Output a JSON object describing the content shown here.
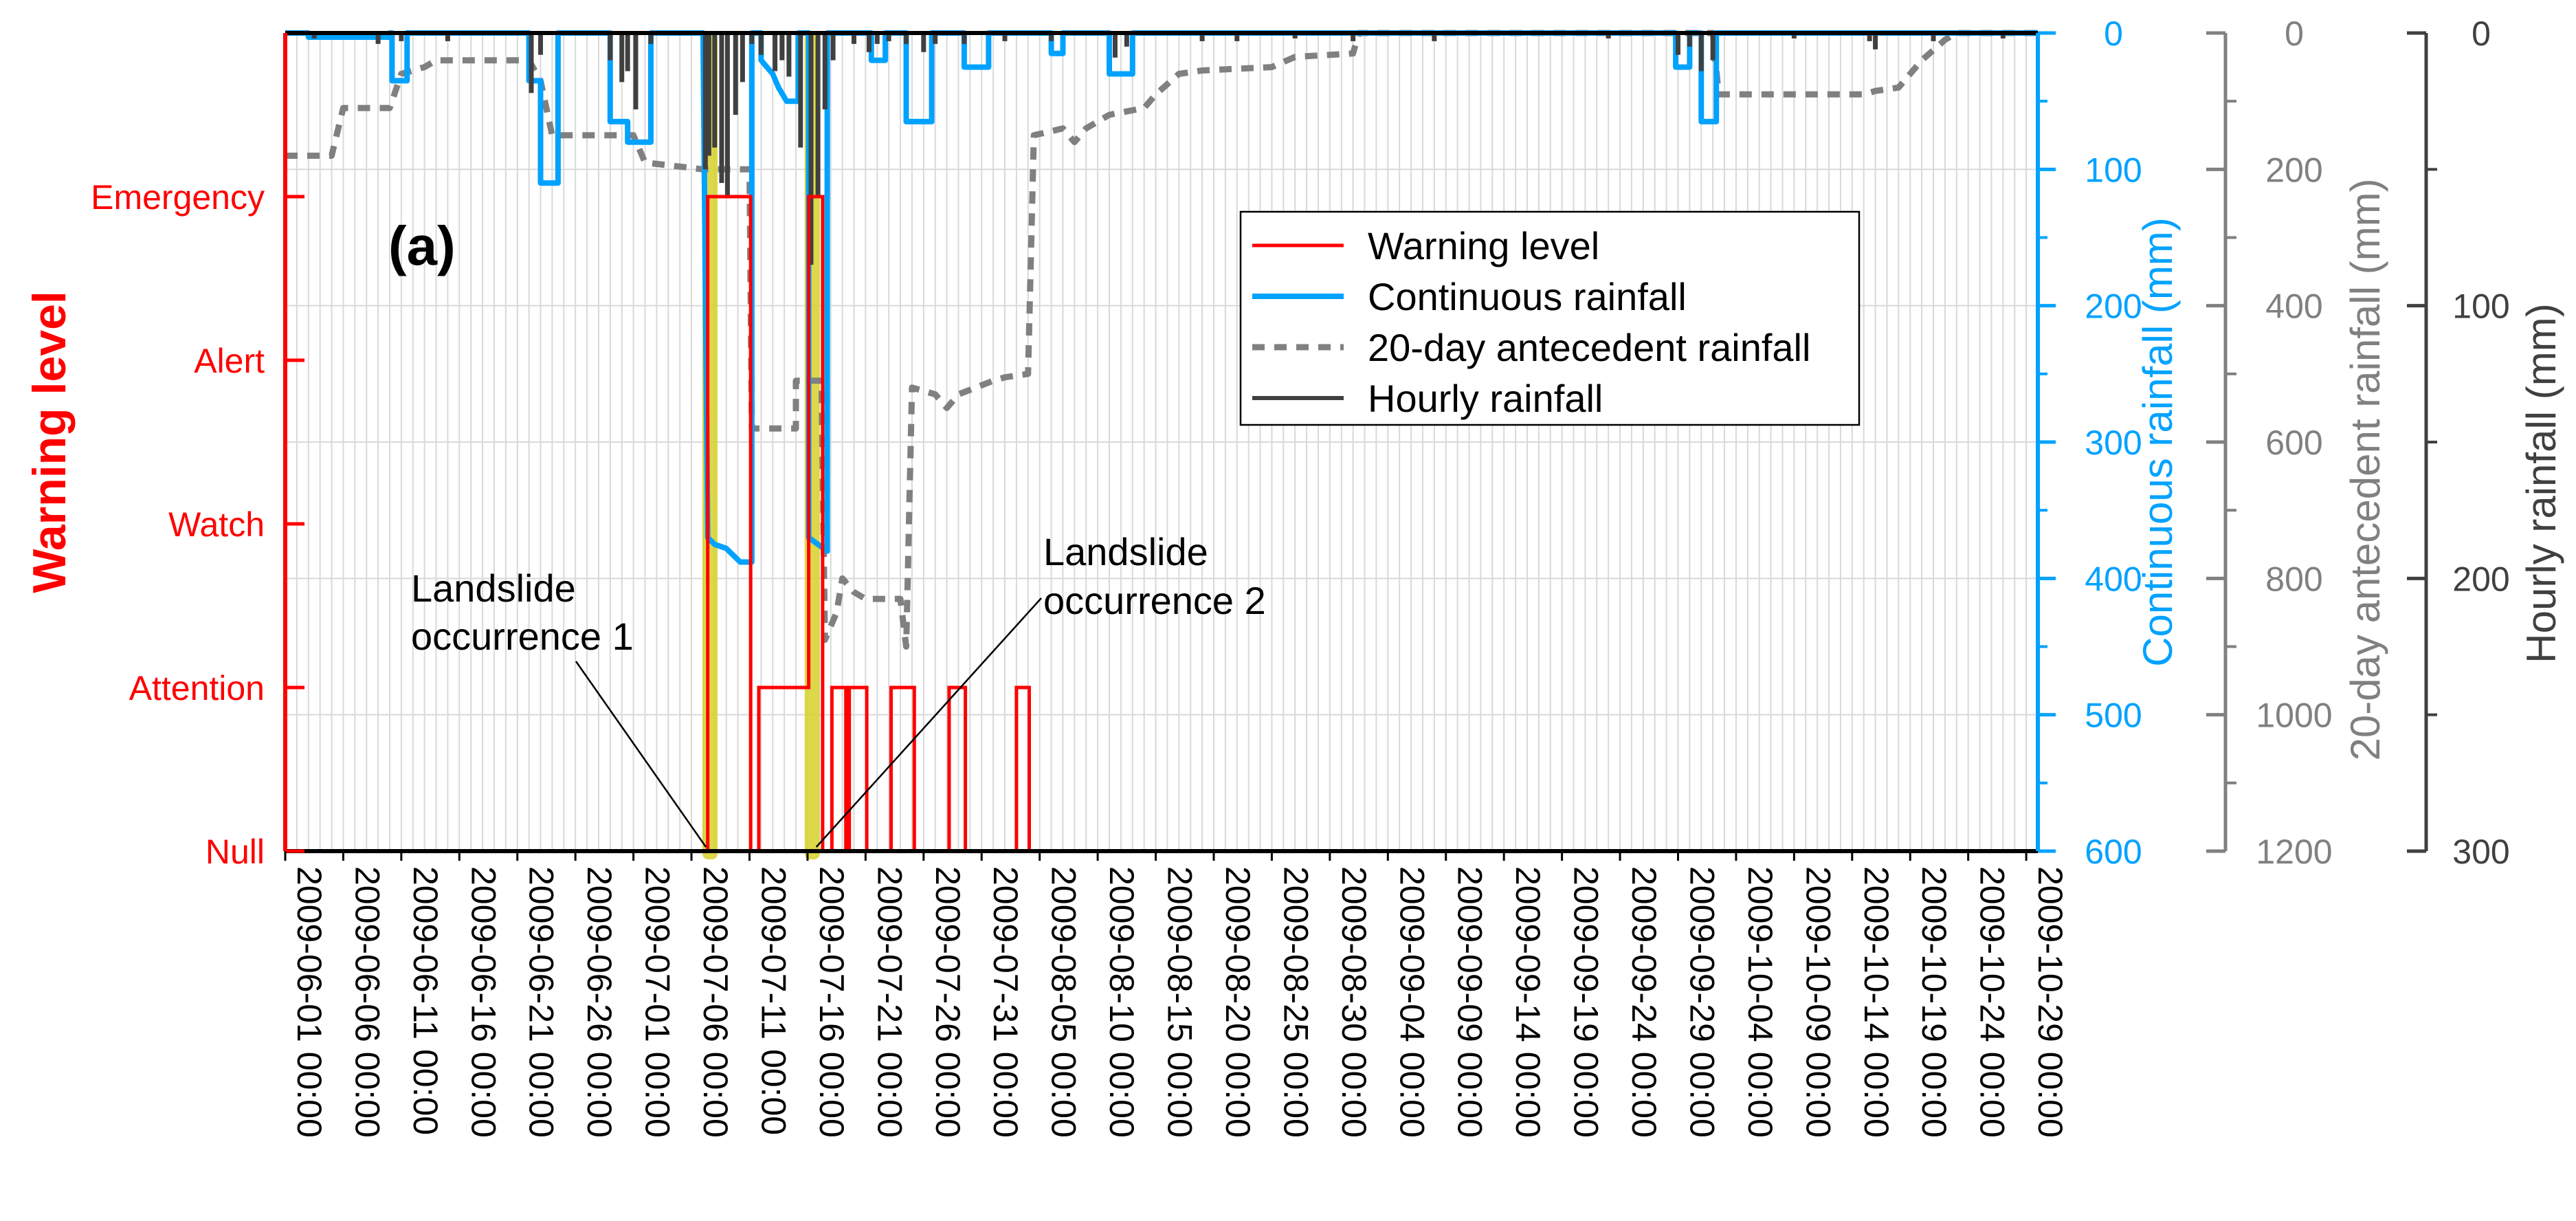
{
  "chart_data": {
    "type": "line",
    "panel_label": "(a)",
    "title": "",
    "colors": {
      "warning": "#ff0000",
      "continuous": "#00a2ff",
      "antecedent": "#808080",
      "hourly": "#404040",
      "highlight": "#d6d12a"
    },
    "x_axis": {
      "range": [
        0,
        151
      ],
      "start_date": "2009-06-01",
      "tick_labels": [
        "2009-06-01 00:00",
        "2009-06-06 00:00",
        "2009-06-11 00:00",
        "2009-06-16 00:00",
        "2009-06-21 00:00",
        "2009-06-26 00:00",
        "2009-07-01 00:00",
        "2009-07-06 00:00",
        "2009-07-11 00:00",
        "2009-07-16 00:00",
        "2009-07-21 00:00",
        "2009-07-26 00:00",
        "2009-07-31 00:00",
        "2009-08-05 00:00",
        "2009-08-10 00:00",
        "2009-08-15 00:00",
        "2009-08-20 00:00",
        "2009-08-25 00:00",
        "2009-08-30 00:00",
        "2009-09-04 00:00",
        "2009-09-09 00:00",
        "2009-09-14 00:00",
        "2009-09-19 00:00",
        "2009-09-24 00:00",
        "2009-09-29 00:00",
        "2009-10-04 00:00",
        "2009-10-09 00:00",
        "2009-10-14 00:00",
        "2009-10-19 00:00",
        "2009-10-24 00:00",
        "2009-10-29 00:00"
      ]
    },
    "y_axes": {
      "warning": {
        "title": "Warning level",
        "levels": [
          "Null",
          "Attention",
          "Watch",
          "Alert",
          "Emergency"
        ]
      },
      "continuous": {
        "title": "Continuous rainfall (mm)",
        "range": [
          0,
          600
        ],
        "ticks": [
          "0",
          "100",
          "200",
          "300",
          "400",
          "500",
          "600"
        ]
      },
      "antecedent": {
        "title": "20-day antecedent rainfall (mm)",
        "range": [
          0,
          1200
        ],
        "ticks": [
          "0",
          "200",
          "400",
          "600",
          "800",
          "1000",
          "1200"
        ]
      },
      "hourly": {
        "title": "Hourly rainfall (mm)",
        "range": [
          0,
          300
        ],
        "ticks": [
          "0",
          "100",
          "200",
          "300"
        ]
      }
    },
    "legend": {
      "position": "upper-right",
      "entries": [
        "Warning level",
        "Continuous rainfall",
        "20-day antecedent rainfall",
        "Hourly rainfall"
      ]
    },
    "landslide_days": [
      36.6,
      45.4
    ],
    "annotations": [
      {
        "lines": [
          "Landslide",
          "occurrence 1"
        ],
        "day": 36.6
      },
      {
        "lines": [
          "Landslide",
          "occurrence 2"
        ],
        "day": 45.4
      }
    ],
    "series": [
      {
        "name": "Warning level",
        "key": "warning",
        "step": true,
        "points": [
          [
            0,
            0
          ],
          [
            36.4,
            0
          ],
          [
            36.4,
            4
          ],
          [
            40.1,
            4
          ],
          [
            40.1,
            0
          ],
          [
            40.8,
            0
          ],
          [
            40.8,
            1
          ],
          [
            45.1,
            1
          ],
          [
            45.1,
            4
          ],
          [
            46.3,
            4
          ],
          [
            46.3,
            0
          ],
          [
            47.1,
            0
          ],
          [
            47.1,
            1
          ],
          [
            48.3,
            1
          ],
          [
            48.3,
            0
          ],
          [
            48.6,
            0
          ],
          [
            48.6,
            1
          ],
          [
            50.1,
            1
          ],
          [
            50.1,
            0
          ],
          [
            52.2,
            0
          ],
          [
            52.2,
            1
          ],
          [
            54.2,
            1
          ],
          [
            54.2,
            0
          ],
          [
            57.2,
            0
          ],
          [
            57.2,
            1
          ],
          [
            58.6,
            1
          ],
          [
            58.6,
            0
          ],
          [
            63.0,
            0
          ],
          [
            63.0,
            1
          ],
          [
            64.1,
            1
          ],
          [
            64.1,
            0
          ],
          [
            151,
            0
          ]
        ]
      },
      {
        "name": "Continuous rainfall",
        "key": "continuous",
        "step": true,
        "points": [
          [
            0,
            0
          ],
          [
            2,
            0
          ],
          [
            2,
            3
          ],
          [
            9,
            3
          ],
          [
            9,
            0
          ],
          [
            9.2,
            0
          ],
          [
            9.2,
            35
          ],
          [
            10.5,
            35
          ],
          [
            10.5,
            0
          ],
          [
            21,
            0
          ],
          [
            21,
            35
          ],
          [
            22,
            35
          ],
          [
            22,
            110
          ],
          [
            23.5,
            110
          ],
          [
            23.5,
            0
          ],
          [
            28,
            0
          ],
          [
            28,
            65
          ],
          [
            29.5,
            65
          ],
          [
            29.5,
            80
          ],
          [
            31.5,
            80
          ],
          [
            31.5,
            0
          ],
          [
            36,
            0
          ],
          [
            36.4,
            370
          ],
          [
            37,
            375
          ],
          [
            38,
            378
          ],
          [
            39.2,
            388
          ],
          [
            40.2,
            388
          ],
          [
            40.2,
            0
          ],
          [
            41,
            0
          ],
          [
            41,
            20
          ],
          [
            42,
            30
          ],
          [
            42.5,
            40
          ],
          [
            43.2,
            50
          ],
          [
            44.2,
            50
          ],
          [
            44.2,
            0
          ],
          [
            45.1,
            0
          ],
          [
            45.1,
            370
          ],
          [
            46.7,
            380
          ],
          [
            46.7,
            0
          ],
          [
            50.5,
            0
          ],
          [
            50.5,
            20
          ],
          [
            51.7,
            20
          ],
          [
            51.7,
            0
          ],
          [
            53.5,
            0
          ],
          [
            53.5,
            65
          ],
          [
            55.7,
            65
          ],
          [
            55.7,
            0
          ],
          [
            58.5,
            0
          ],
          [
            58.5,
            25
          ],
          [
            60.6,
            25
          ],
          [
            60.6,
            0
          ],
          [
            66,
            0
          ],
          [
            66,
            15
          ],
          [
            67,
            15
          ],
          [
            67,
            0
          ],
          [
            71,
            0
          ],
          [
            71,
            30
          ],
          [
            73,
            30
          ],
          [
            73,
            0
          ],
          [
            119.8,
            0
          ],
          [
            119.8,
            25
          ],
          [
            121,
            25
          ],
          [
            121,
            0
          ],
          [
            122,
            0
          ],
          [
            122,
            65
          ],
          [
            123.3,
            65
          ],
          [
            123.3,
            0
          ],
          [
            151,
            0
          ]
        ]
      },
      {
        "name": "20-day antecedent rainfall",
        "key": "antecedent",
        "step": true,
        "points": [
          [
            0,
            180
          ],
          [
            4,
            180
          ],
          [
            5,
            110
          ],
          [
            9,
            110
          ],
          [
            10,
            60
          ],
          [
            12,
            50
          ],
          [
            13,
            40
          ],
          [
            21,
            40
          ],
          [
            22,
            70
          ],
          [
            23,
            150
          ],
          [
            30,
            150
          ],
          [
            31,
            190
          ],
          [
            36,
            200
          ],
          [
            40,
            200
          ],
          [
            40.2,
            580
          ],
          [
            44,
            580
          ],
          [
            44,
            510
          ],
          [
            46.2,
            510
          ],
          [
            46.5,
            890
          ],
          [
            47.5,
            850
          ],
          [
            48,
            800
          ],
          [
            49,
            820
          ],
          [
            50,
            830
          ],
          [
            53,
            830
          ],
          [
            53.5,
            900
          ],
          [
            54,
            520
          ],
          [
            56,
            530
          ],
          [
            57,
            550
          ],
          [
            58,
            530
          ],
          [
            61,
            510
          ],
          [
            62,
            505
          ],
          [
            64,
            500
          ],
          [
            64.5,
            150
          ],
          [
            67,
            140
          ],
          [
            68,
            160
          ],
          [
            69,
            140
          ],
          [
            71,
            120
          ],
          [
            74,
            110
          ],
          [
            75,
            90
          ],
          [
            77,
            60
          ],
          [
            79,
            55
          ],
          [
            85,
            50
          ],
          [
            87,
            35
          ],
          [
            92,
            30
          ],
          [
            92.5,
            0
          ],
          [
            119,
            0
          ],
          [
            123,
            0
          ],
          [
            123.5,
            90
          ],
          [
            136,
            90
          ],
          [
            137,
            85
          ],
          [
            139,
            80
          ],
          [
            140,
            60
          ],
          [
            141,
            40
          ],
          [
            143,
            10
          ],
          [
            144,
            0
          ],
          [
            151,
            0
          ]
        ]
      },
      {
        "name": "Hourly rainfall",
        "key": "hourly",
        "spikes": [
          [
            2.5,
            2
          ],
          [
            8,
            4
          ],
          [
            10,
            3
          ],
          [
            14,
            3
          ],
          [
            21.2,
            22
          ],
          [
            22,
            8
          ],
          [
            28,
            10
          ],
          [
            29,
            18
          ],
          [
            29.5,
            14
          ],
          [
            30.2,
            28
          ],
          [
            31.5,
            4
          ],
          [
            36.2,
            50
          ],
          [
            36.5,
            45
          ],
          [
            37,
            42
          ],
          [
            37.6,
            55
          ],
          [
            38.1,
            60
          ],
          [
            38.8,
            30
          ],
          [
            39.4,
            18
          ],
          [
            40.2,
            4
          ],
          [
            41,
            8
          ],
          [
            42.2,
            14
          ],
          [
            42.8,
            10
          ],
          [
            43.4,
            16
          ],
          [
            44.4,
            42
          ],
          [
            45.3,
            85
          ],
          [
            45.9,
            60
          ],
          [
            46.5,
            28
          ],
          [
            47.2,
            10
          ],
          [
            49,
            4
          ],
          [
            50.3,
            7
          ],
          [
            51,
            4
          ],
          [
            52,
            3
          ],
          [
            53.5,
            4
          ],
          [
            55,
            7
          ],
          [
            56,
            4
          ],
          [
            58.5,
            4
          ],
          [
            62,
            3
          ],
          [
            66,
            3
          ],
          [
            71.5,
            9
          ],
          [
            72.5,
            5
          ],
          [
            79,
            3
          ],
          [
            82,
            3
          ],
          [
            87,
            2
          ],
          [
            92,
            3
          ],
          [
            99,
            3
          ],
          [
            114,
            2
          ],
          [
            120,
            8
          ],
          [
            121,
            5
          ],
          [
            122,
            14
          ],
          [
            123,
            10
          ],
          [
            130,
            2
          ],
          [
            136.5,
            3
          ],
          [
            137,
            6
          ],
          [
            142,
            3
          ],
          [
            148,
            2
          ]
        ]
      }
    ]
  }
}
